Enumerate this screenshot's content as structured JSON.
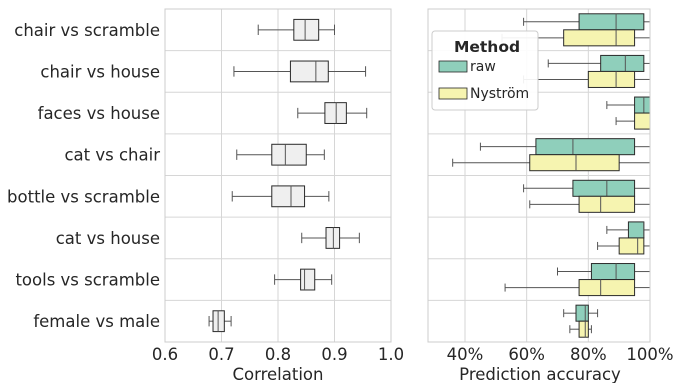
{
  "chart_data": [
    {
      "type": "boxplot",
      "orientation": "horizontal",
      "xlabel": "Correlation",
      "xlim": [
        0.6,
        1.0
      ],
      "xticks": [
        "0.6",
        "0.7",
        "0.8",
        "0.9",
        "1.0"
      ],
      "xtick_values": [
        0.6,
        0.7,
        0.8,
        0.9,
        1.0
      ],
      "grid": true,
      "box_color": "#efefef",
      "categories": [
        "chair vs scramble",
        "chair vs house",
        "faces vs house",
        "cat vs chair",
        "bottle vs scramble",
        "cat vs house",
        "tools vs scramble",
        "female vs male"
      ],
      "boxes": [
        {
          "whislo": 0.765,
          "q1": 0.828,
          "med": 0.848,
          "q3": 0.872,
          "whishi": 0.9
        },
        {
          "whislo": 0.722,
          "q1": 0.822,
          "med": 0.867,
          "q3": 0.889,
          "whishi": 0.955
        },
        {
          "whislo": 0.835,
          "q1": 0.883,
          "med": 0.903,
          "q3": 0.921,
          "whishi": 0.957
        },
        {
          "whislo": 0.727,
          "q1": 0.789,
          "med": 0.813,
          "q3": 0.85,
          "whishi": 0.882
        },
        {
          "whislo": 0.719,
          "q1": 0.789,
          "med": 0.823,
          "q3": 0.847,
          "whishi": 0.89
        },
        {
          "whislo": 0.842,
          "q1": 0.885,
          "med": 0.898,
          "q3": 0.909,
          "whishi": 0.944
        },
        {
          "whislo": 0.794,
          "q1": 0.84,
          "med": 0.847,
          "q3": 0.865,
          "whishi": 0.895
        },
        {
          "whislo": 0.678,
          "q1": 0.685,
          "med": 0.694,
          "q3": 0.705,
          "whishi": 0.717
        }
      ]
    },
    {
      "type": "boxplot",
      "orientation": "horizontal",
      "xlabel": "Prediction accuracy",
      "xlim": [
        28,
        100
      ],
      "xticks": [
        "40%",
        "60%",
        "80%",
        "100%"
      ],
      "xtick_values": [
        40,
        60,
        80,
        100
      ],
      "grid": true,
      "legend": {
        "title": "Method",
        "placement": "top-left",
        "entries": [
          {
            "name": "raw",
            "color": "#8fcfbb"
          },
          {
            "name": "Nyström",
            "color": "#f6f4b0"
          }
        ]
      },
      "categories": [
        "chair vs scramble",
        "chair vs house",
        "faces vs house",
        "cat vs chair",
        "bottle vs scramble",
        "cat vs house",
        "tools vs scramble",
        "female vs male"
      ],
      "series": [
        {
          "name": "raw",
          "color": "#8fcfbb",
          "boxes": [
            {
              "whislo": 59,
              "q1": 77,
              "med": 89,
              "q3": 98,
              "whishi": 100
            },
            {
              "whislo": 67,
              "q1": 84,
              "med": 92,
              "q3": 98,
              "whishi": 100
            },
            {
              "whislo": 86,
              "q1": 95,
              "med": 98,
              "q3": 100,
              "whishi": 100
            },
            {
              "whislo": 45,
              "q1": 63,
              "med": 75,
              "q3": 95,
              "whishi": 100
            },
            {
              "whislo": 59,
              "q1": 75,
              "med": 86,
              "q3": 95,
              "whishi": 100
            },
            {
              "whislo": 86,
              "q1": 93,
              "med": 98,
              "q3": 98,
              "whishi": 100
            },
            {
              "whislo": 70,
              "q1": 81,
              "med": 89,
              "q3": 95,
              "whishi": 100
            },
            {
              "whislo": 72,
              "q1": 76,
              "med": 79,
              "q3": 80,
              "whishi": 83
            }
          ]
        },
        {
          "name": "Nyström",
          "color": "#f6f4b0",
          "boxes": [
            {
              "whislo": 52,
              "q1": 72,
              "med": 89,
              "q3": 95,
              "whishi": 100
            },
            {
              "whislo": 59,
              "q1": 80,
              "med": 89,
              "q3": 95,
              "whishi": 100
            },
            {
              "whislo": 89,
              "q1": 95,
              "med": 100,
              "q3": 100,
              "whishi": 100
            },
            {
              "whislo": 36,
              "q1": 61,
              "med": 76,
              "q3": 90,
              "whishi": 100
            },
            {
              "whislo": 61,
              "q1": 77,
              "med": 84,
              "q3": 95,
              "whishi": 100
            },
            {
              "whislo": 83,
              "q1": 90,
              "med": 96,
              "q3": 98,
              "whishi": 100
            },
            {
              "whislo": 53,
              "q1": 77,
              "med": 84,
              "q3": 95,
              "whishi": 100
            },
            {
              "whislo": 74,
              "q1": 77,
              "med": 79,
              "q3": 80,
              "whishi": 81
            }
          ]
        }
      ]
    }
  ]
}
